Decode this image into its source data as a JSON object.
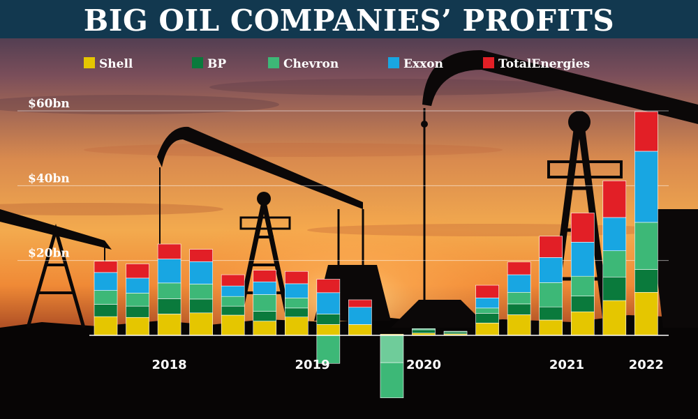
{
  "title": "BIG OIL COMPANIES’ PROFITS",
  "colors": {
    "Shell": "#e5c600",
    "BP": "#0a7a3c",
    "Chevron": "#3db877",
    "Exxon": "#18a6e2",
    "TotalEnergies": "#e21f26",
    "bp_negative": "#6fcc9a",
    "header": "#12384f"
  },
  "chart_data": {
    "type": "bar",
    "stacked": true,
    "title": "BIG OIL COMPANIES’ PROFITS",
    "legend": [
      "Shell",
      "BP",
      "Chevron",
      "Exxon",
      "TotalEnergies"
    ],
    "legend_position": "top",
    "ytick_labels": [
      "$20bn",
      "$40bn",
      "$60bn"
    ],
    "yticks": [
      20,
      40,
      60
    ],
    "ylim": [
      -17,
      62
    ],
    "grid": true,
    "year_labels": [
      "2018",
      "2019",
      "2020",
      "2021",
      "2022"
    ],
    "year_label_quarters": [
      2,
      6.5,
      10,
      14.5,
      17
    ],
    "quarters": [
      {
        "Shell": 5.0,
        "BP": 3.3,
        "Chevron": 3.7,
        "Exxon": 4.8,
        "TotalEnergies": 3.0
      },
      {
        "Shell": 4.8,
        "BP": 3.0,
        "Chevron": 3.5,
        "Exxon": 4.0,
        "TotalEnergies": 3.8
      },
      {
        "Shell": 5.7,
        "BP": 4.1,
        "Chevron": 4.2,
        "Exxon": 6.4,
        "TotalEnergies": 4.0
      },
      {
        "Shell": 6.0,
        "BP": 3.7,
        "Chevron": 4.0,
        "Exxon": 6.0,
        "TotalEnergies": 3.3
      },
      {
        "Shell": 5.4,
        "BP": 2.4,
        "Chevron": 2.6,
        "Exxon": 2.8,
        "TotalEnergies": 3.0
      },
      {
        "Shell": 3.8,
        "BP": 2.6,
        "Chevron": 4.5,
        "Exxon": 3.4,
        "TotalEnergies": 3.1
      },
      {
        "Shell": 4.9,
        "BP": 2.4,
        "Chevron": 2.7,
        "Exxon": 3.8,
        "TotalEnergies": 3.3
      },
      {
        "Shell": 2.9,
        "BP": 2.8,
        "Chevron": -7.5,
        "Exxon": 5.7,
        "TotalEnergies": 3.6
      },
      {
        "Shell": 2.9,
        "BP": 0,
        "Chevron": 0,
        "Exxon": 4.6,
        "TotalEnergies": 2.0
      },
      {
        "Shell": 0.3,
        "BP": -7.3,
        "Chevron": -9.4,
        "Exxon": 0,
        "TotalEnergies": 0
      },
      {
        "Shell": 0.6,
        "BP": 0.9,
        "Chevron": 0.3,
        "Exxon": 0,
        "TotalEnergies": 0
      },
      {
        "Shell": 0.4,
        "BP": 0.5,
        "Chevron": 0.2,
        "Exxon": 0,
        "TotalEnergies": 0
      },
      {
        "Shell": 3.3,
        "BP": 2.6,
        "Chevron": 1.4,
        "Exxon": 2.7,
        "TotalEnergies": 3.4
      },
      {
        "Shell": 5.5,
        "BP": 2.9,
        "Chevron": 3.1,
        "Exxon": 4.7,
        "TotalEnergies": 3.4
      },
      {
        "Shell": 4.1,
        "BP": 3.5,
        "Chevron": 6.5,
        "Exxon": 6.7,
        "TotalEnergies": 5.7
      },
      {
        "Shell": 6.3,
        "BP": 4.2,
        "Chevron": 5.3,
        "Exxon": 9.1,
        "TotalEnergies": 7.8
      },
      {
        "Shell": 9.3,
        "BP": 6.3,
        "Chevron": 7.0,
        "Exxon": 8.9,
        "TotalEnergies": 9.8
      },
      {
        "Shell": 11.5,
        "BP": 6.1,
        "Chevron": 12.6,
        "Exxon": 19.0,
        "TotalEnergies": 10.6
      }
    ]
  }
}
